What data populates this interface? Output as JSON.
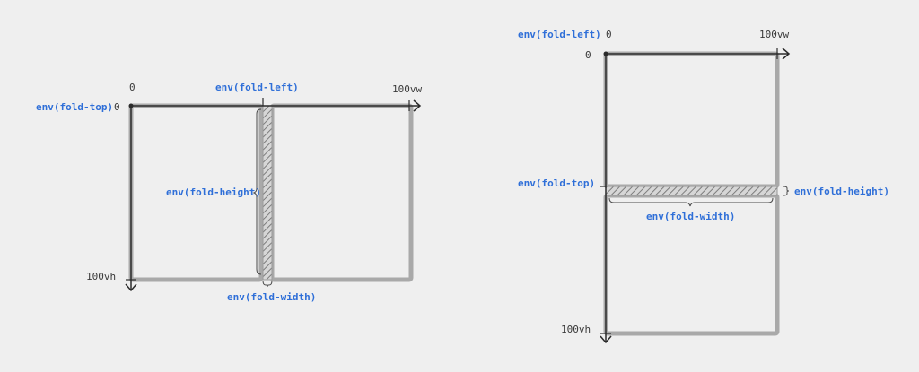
{
  "colors": {
    "background": "#efefef",
    "screen_outline": "#a9a9a9",
    "axis": "#2b2b2b",
    "label_blue": "#2f6fd8",
    "label_dark": "#3a3a3a",
    "hatch": "#8a8a8a"
  },
  "left_diagram": {
    "origin_x_label": "0",
    "origin_y_label": "0",
    "x_end_label": "100vw",
    "y_end_label": "100vh",
    "fold_top_label": "env(fold-top)",
    "fold_left_label": "env(fold-left)",
    "fold_height_label": "env(fold-height)",
    "fold_width_label": "env(fold-width)"
  },
  "right_diagram": {
    "origin_x_label": "0",
    "origin_y_label": "0",
    "x_end_label": "100vw",
    "y_end_label": "100vh",
    "fold_left_label": "env(fold-left)",
    "fold_top_label": "env(fold-top)",
    "fold_height_label": "env(fold-height)",
    "fold_width_label": "env(fold-width)"
  }
}
